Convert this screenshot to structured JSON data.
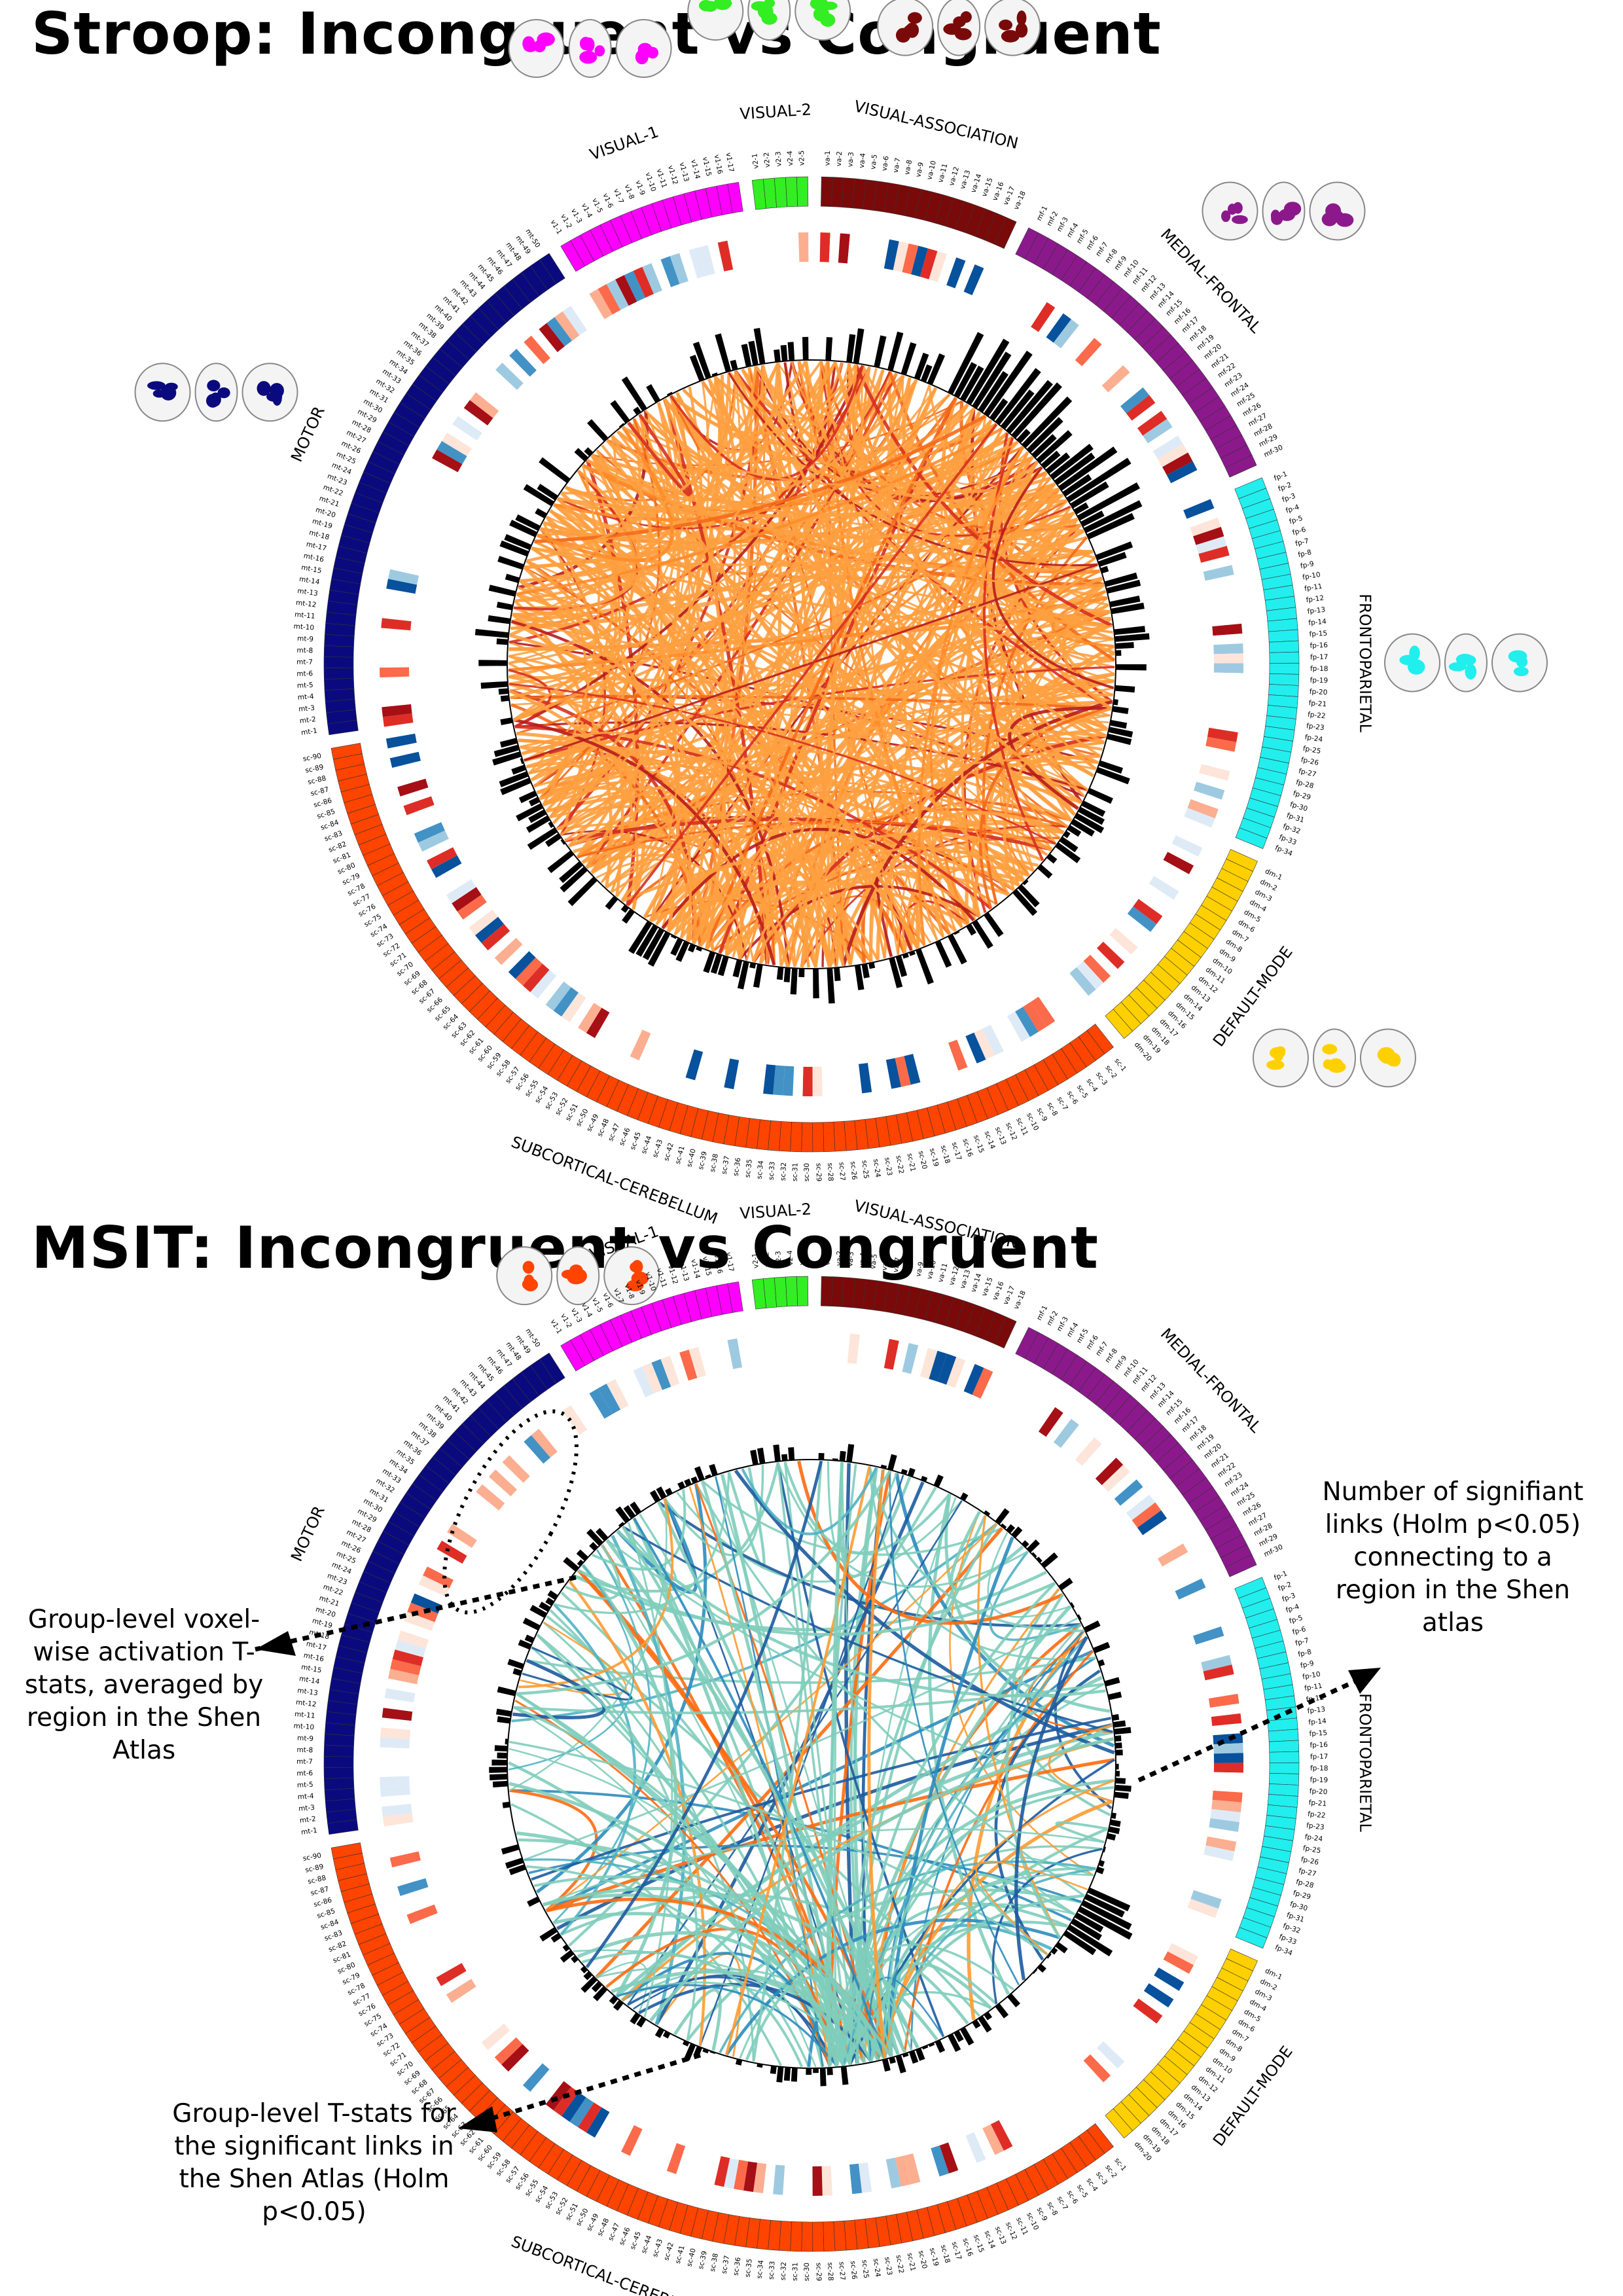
{
  "titles": {
    "top": "Stroop: Incongruent vs Congruent",
    "bottom": "MSIT: Incongruent vs Congruent"
  },
  "networks": [
    {
      "name": "VISUAL-2",
      "prefix": "v2",
      "count": 5,
      "color": "#33ee22"
    },
    {
      "name": "VISUAL-ASSOCIATION",
      "prefix": "va",
      "count": 18,
      "color": "#7a0a0a"
    },
    {
      "name": "MEDIAL-FRONTAL",
      "prefix": "mf",
      "count": 30,
      "color": "#8c198c"
    },
    {
      "name": "FRONTOPARIETAL",
      "prefix": "fp",
      "count": 34,
      "color": "#22eeee"
    },
    {
      "name": "DEFAULT-MODE",
      "prefix": "dm",
      "count": 20,
      "color": "#ffd000"
    },
    {
      "name": "SUBCORTICAL-CEREBELLUM",
      "prefix": "sc",
      "count": 90,
      "color": "#ff4400"
    },
    {
      "name": "MOTOR",
      "prefix": "mt",
      "count": 50,
      "color": "#0a0a7e"
    },
    {
      "name": "VISUAL-1",
      "prefix": "v1",
      "count": 17,
      "color": "#ff00ff"
    }
  ],
  "annotations": {
    "activation": "Group-level voxel-wise activation T-stats, averaged by region in the Shen Atlas",
    "links": "Number of signifiant links (Holm p<0.05) connecting to a region in the Shen atlas",
    "tstats": "Group-level T-stats for the significant links in the Shen Atlas (Holm p<0.05)"
  },
  "colors": {
    "stroop_links": [
      "#ffa040",
      "#ff8c2a",
      "#f46a1a",
      "#d7301f",
      "#b71c1c"
    ],
    "msit_links": [
      "#7fcdbb",
      "#4fb3c4",
      "#2b8cbe",
      "#1c5a9e",
      "#ff9a30",
      "#ff6a10"
    ],
    "heat_cells": [
      "#fee5d9",
      "#fcae91",
      "#fb6a4a",
      "#de2d26",
      "#a50f15",
      "#deebf7",
      "#9ecae1",
      "#4292c6",
      "#08519c",
      "#ffffff"
    ]
  }
}
